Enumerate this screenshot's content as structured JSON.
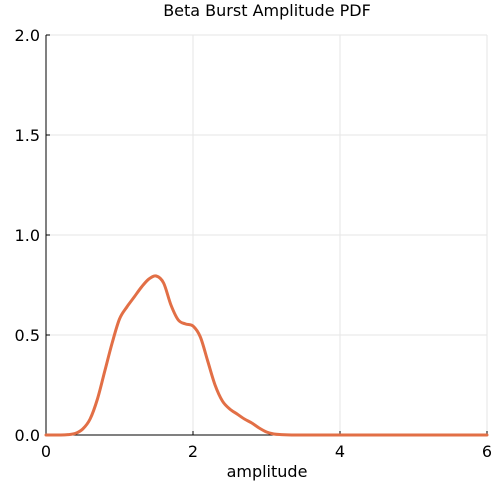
{
  "chart_data": {
    "type": "line",
    "title": "Beta Burst Amplitude PDF",
    "xlabel": "amplitude",
    "ylabel": "",
    "xlim": [
      0,
      6
    ],
    "ylim": [
      0,
      2
    ],
    "xticks": [
      0,
      2,
      4,
      6
    ],
    "yticks": [
      0.0,
      0.5,
      1.0,
      1.5,
      2.0
    ],
    "xtick_labels": [
      "0",
      "2",
      "4",
      "6"
    ],
    "ytick_labels": [
      "0.0",
      "0.5",
      "1.0",
      "1.5",
      "2.0"
    ],
    "grid": true,
    "legend": "none",
    "series": [
      {
        "color": "#e26f46",
        "x": [
          0,
          0.2,
          0.3,
          0.4,
          0.5,
          0.6,
          0.7,
          0.8,
          0.9,
          1.0,
          1.1,
          1.2,
          1.3,
          1.4,
          1.5,
          1.6,
          1.7,
          1.8,
          1.9,
          2.0,
          2.1,
          2.2,
          2.3,
          2.4,
          2.5,
          2.6,
          2.7,
          2.8,
          2.9,
          3.0,
          3.1,
          3.2,
          3.4,
          3.6,
          4.0,
          5.0,
          6.0
        ],
        "y": [
          0,
          0,
          0.002,
          0.008,
          0.03,
          0.08,
          0.18,
          0.32,
          0.46,
          0.58,
          0.64,
          0.69,
          0.74,
          0.78,
          0.795,
          0.76,
          0.65,
          0.575,
          0.555,
          0.545,
          0.49,
          0.37,
          0.25,
          0.17,
          0.13,
          0.105,
          0.08,
          0.06,
          0.035,
          0.015,
          0.005,
          0.002,
          0,
          0,
          0,
          0,
          0
        ]
      }
    ]
  }
}
